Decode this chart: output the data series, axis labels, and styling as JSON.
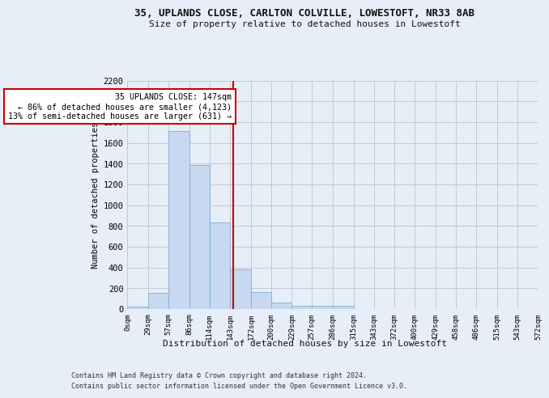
{
  "title_line1": "35, UPLANDS CLOSE, CARLTON COLVILLE, LOWESTOFT, NR33 8AB",
  "title_line2": "Size of property relative to detached houses in Lowestoft",
  "xlabel": "Distribution of detached houses by size in Lowestoft",
  "ylabel": "Number of detached properties",
  "bar_edges": [
    0,
    29,
    57,
    86,
    114,
    143,
    172,
    200,
    229,
    257,
    286,
    315,
    343,
    372,
    400,
    429,
    458,
    486,
    515,
    543,
    572
  ],
  "bar_heights": [
    20,
    155,
    1710,
    1390,
    835,
    380,
    160,
    65,
    35,
    28,
    28,
    0,
    0,
    0,
    0,
    0,
    0,
    0,
    0,
    0
  ],
  "bar_color": "#c6d9f1",
  "bar_edgecolor": "#7bafd4",
  "grid_color": "#c0c8d8",
  "property_size": 147,
  "vline_color": "#cc0000",
  "annotation_text": "  35 UPLANDS CLOSE: 147sqm\n← 86% of detached houses are smaller (4,123)\n13% of semi-detached houses are larger (631) →",
  "annotation_box_edgecolor": "#cc0000",
  "annotation_box_facecolor": "#ffffff",
  "ylim": [
    0,
    2200
  ],
  "yticks": [
    0,
    200,
    400,
    600,
    800,
    1000,
    1200,
    1400,
    1600,
    1800,
    2000,
    2200
  ],
  "footer_line1": "Contains HM Land Registry data © Crown copyright and database right 2024.",
  "footer_line2": "Contains public sector information licensed under the Open Government Licence v3.0.",
  "bg_color": "#e8eef8",
  "plot_bg_color": "#e8eef8"
}
